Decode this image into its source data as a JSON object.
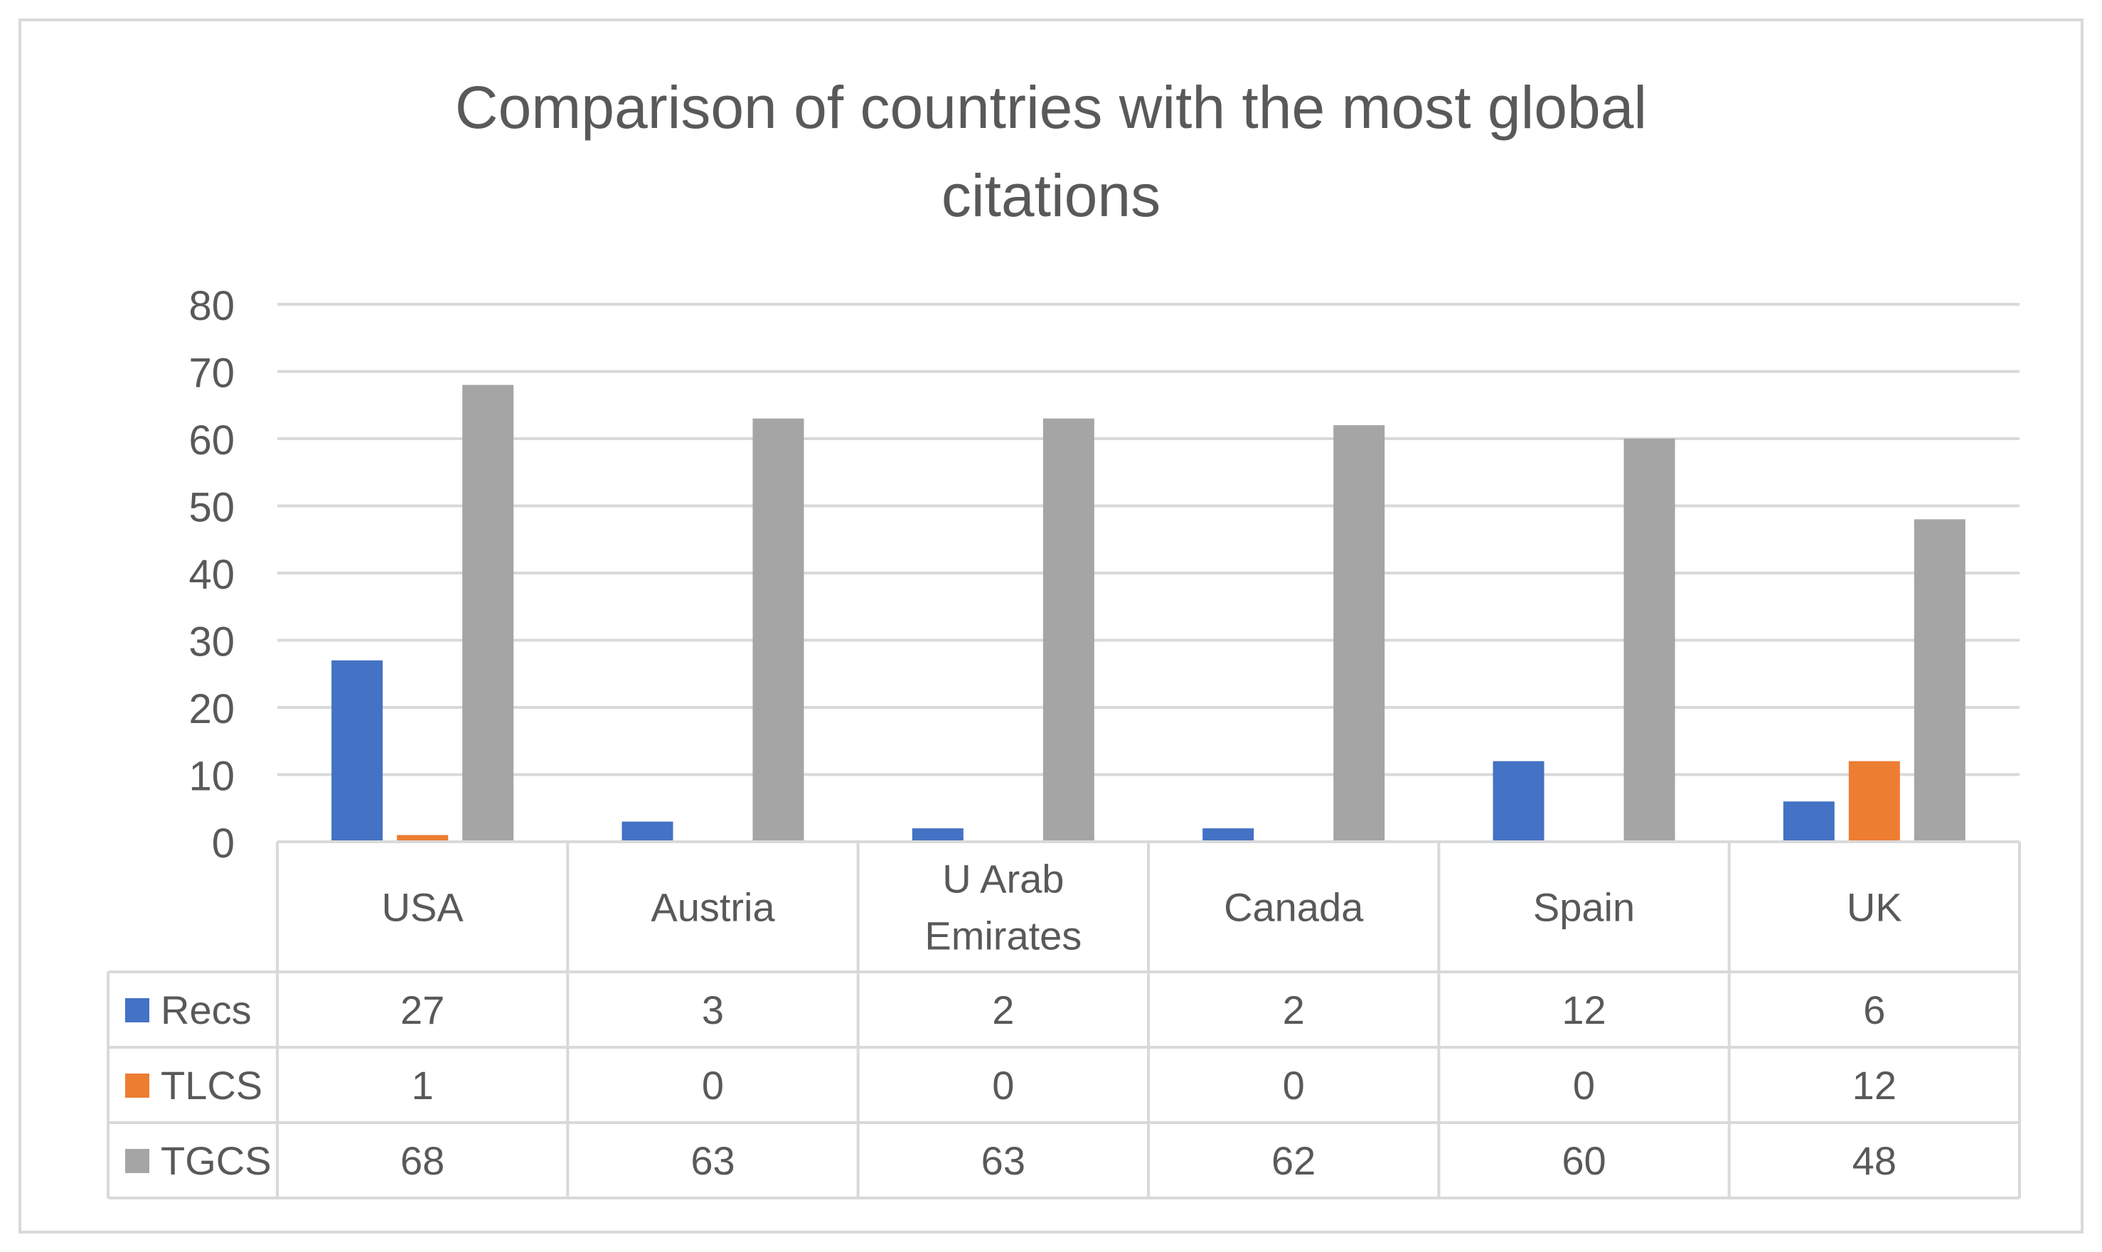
{
  "chart_data": {
    "type": "bar",
    "title_line1": "Comparison of countries with the most global",
    "title_line2": "citations",
    "categories": [
      "USA",
      "Austria",
      "U Arab Emirates",
      "Canada",
      "Spain",
      "UK"
    ],
    "category_lines": [
      [
        "USA"
      ],
      [
        "Austria"
      ],
      [
        "U Arab",
        "Emirates"
      ],
      [
        "Canada"
      ],
      [
        "Spain"
      ],
      [
        "UK"
      ]
    ],
    "series": [
      {
        "name": "Recs",
        "color": "#4472C4",
        "values": [
          27,
          3,
          2,
          2,
          12,
          6
        ]
      },
      {
        "name": "TLCS",
        "color": "#ED7D31",
        "values": [
          1,
          0,
          0,
          0,
          0,
          12
        ]
      },
      {
        "name": "TGCS",
        "color": "#A5A5A5",
        "values": [
          68,
          63,
          63,
          62,
          60,
          48
        ]
      }
    ],
    "ylim": [
      0,
      80
    ],
    "yticks": [
      0,
      10,
      20,
      30,
      40,
      50,
      60,
      70,
      80
    ],
    "grid": true,
    "legend": "data-table"
  }
}
